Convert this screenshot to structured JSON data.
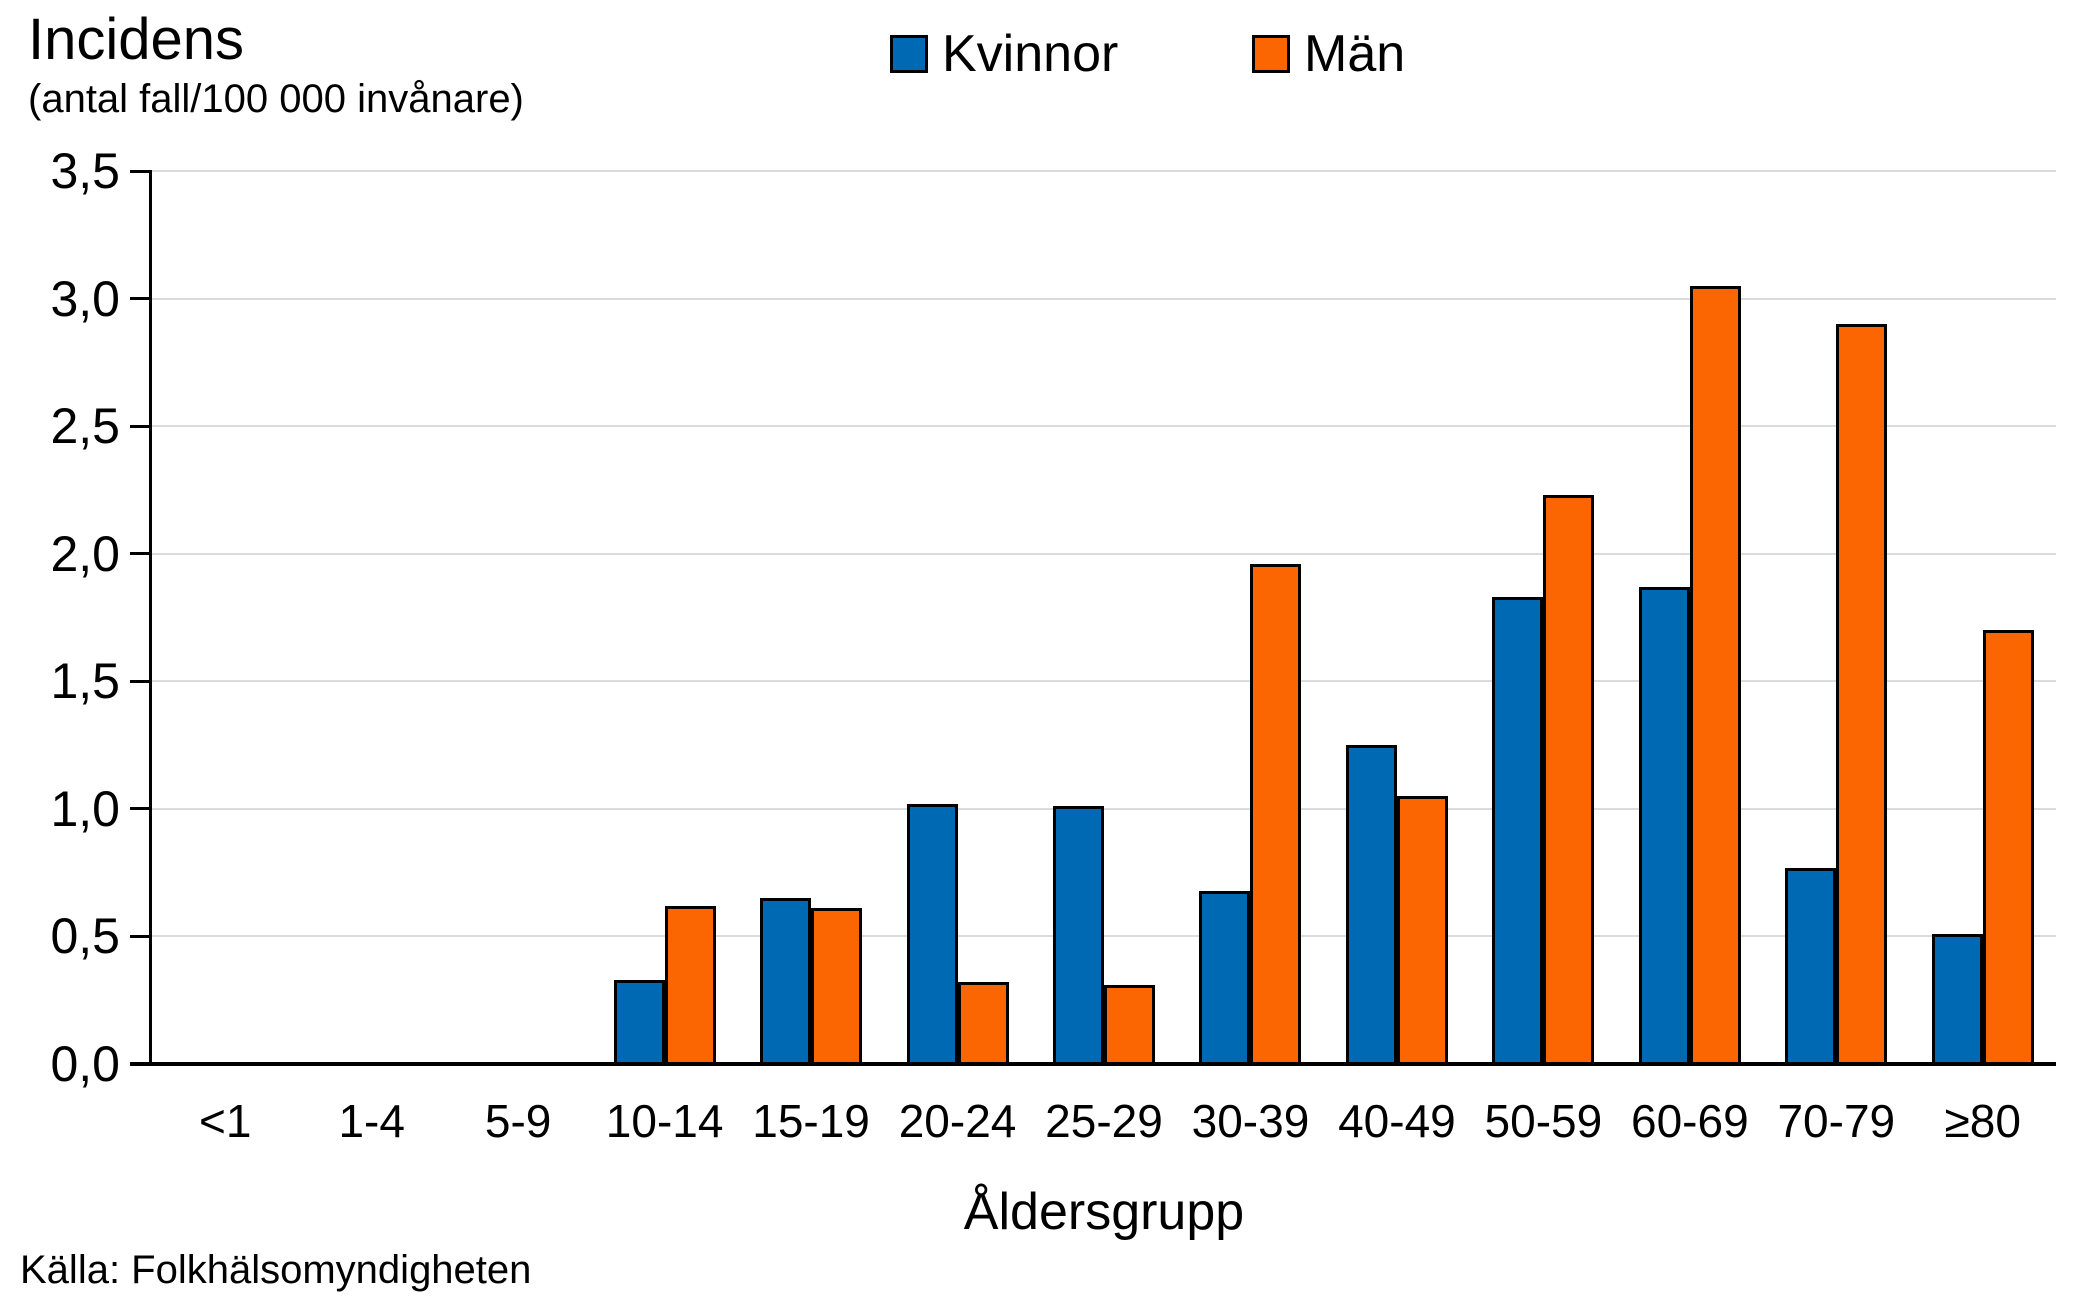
{
  "header": {
    "title": "Incidens",
    "subtitle": "(antal fall/100 000 invånare)"
  },
  "source": "Källa: Folkhälsomyndigheten",
  "colors": {
    "kvinnor": "#0069B4",
    "man": "#FB6602",
    "gridline": "#DBDBDB",
    "axis": "#000000"
  },
  "chart_data": {
    "type": "bar",
    "title": "Incidens (antal fall/100 000 invånare)",
    "xlabel": "Åldersgrupp",
    "ylabel": "Incidens (antal fall/100 000 invånare)",
    "categories": [
      "<1",
      "1-4",
      "5-9",
      "10-14",
      "15-19",
      "20-24",
      "25-29",
      "30-39",
      "40-49",
      "50-59",
      "60-69",
      "70-79",
      "≥80"
    ],
    "series": [
      {
        "name": "Kvinnor",
        "color": "#0069B4",
        "values": [
          0,
          0,
          0,
          0.33,
          0.65,
          1.02,
          1.01,
          0.68,
          1.25,
          1.83,
          1.87,
          0.77,
          0.51
        ]
      },
      {
        "name": "Män",
        "color": "#FB6602",
        "values": [
          0,
          0,
          0,
          0.62,
          0.61,
          0.32,
          0.31,
          1.96,
          1.05,
          2.23,
          3.05,
          2.9,
          1.7
        ]
      }
    ],
    "ylim": [
      0,
      3.5
    ],
    "y_tick_step": 0.5,
    "y_tick_labels": [
      "0,0",
      "0,5",
      "1,0",
      "1,5",
      "2,0",
      "2,5",
      "3,0",
      "3,5"
    ],
    "grid": true,
    "legend_position": "top-center"
  }
}
